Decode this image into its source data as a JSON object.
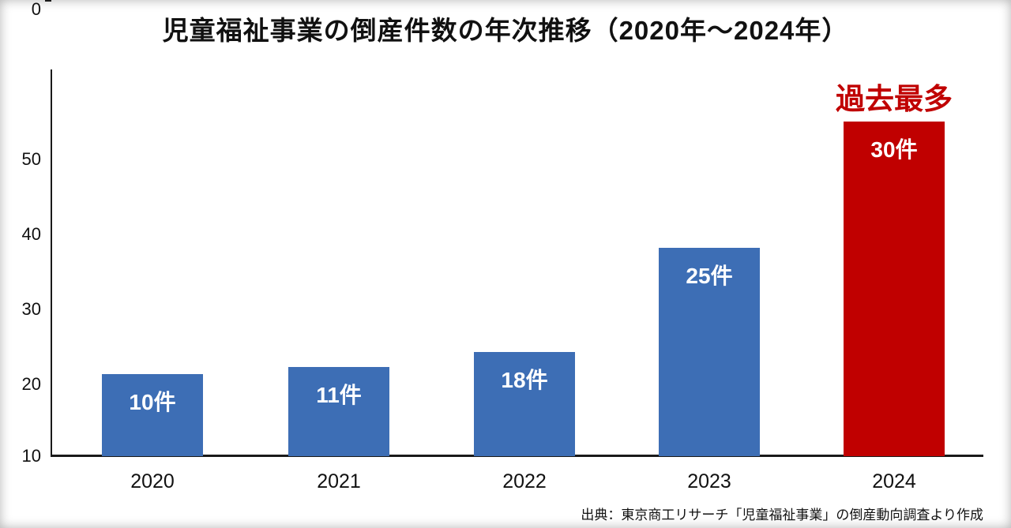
{
  "source": "出典：東京商工リサーチ「児童福祉事業」の倒産動向調査より作成",
  "y_axis_ticks": [
    "50",
    "40",
    "30",
    "20",
    "10",
    "0"
  ],
  "chart_data": {
    "type": "bar",
    "title": "児童福祉事業の倒産件数の年次推移（2020年〜2024年）",
    "categories": [
      "2020",
      "2021",
      "2022",
      "2023",
      "2024"
    ],
    "values": [
      10,
      11,
      18,
      25,
      30
    ],
    "value_labels": [
      "10件",
      "11件",
      "18件",
      "25件",
      "30件"
    ],
    "bar_display_heights": [
      11,
      12,
      14,
      28,
      45
    ],
    "bar_colors": [
      "#3d6eb5",
      "#3d6eb5",
      "#3d6eb5",
      "#3d6eb5",
      "#c00000"
    ],
    "annotation": {
      "text": "過去最多",
      "target": "2024",
      "color": "#c00000"
    },
    "xlabel": "",
    "ylabel": "",
    "ylim": [
      0,
      50
    ],
    "grid": false,
    "legend": false
  }
}
